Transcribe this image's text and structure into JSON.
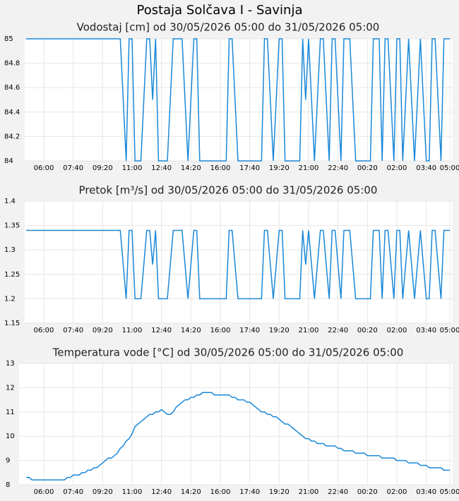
{
  "title": "Postaja Solčava I - Savinja",
  "chart_data": [
    {
      "type": "line",
      "title": "Vodostaj [cm] od 30/05/2026 05:00 do 31/05/2026 05:00",
      "color": "#1a88d8",
      "grid": true,
      "x": [
        "05:00",
        "05:10",
        "05:20",
        "05:30",
        "05:40",
        "05:50",
        "06:00",
        "06:10",
        "06:20",
        "06:30",
        "06:40",
        "06:50",
        "07:00",
        "07:10",
        "07:20",
        "07:30",
        "07:40",
        "07:50",
        "08:00",
        "08:10",
        "08:20",
        "08:30",
        "08:40",
        "08:50",
        "09:00",
        "09:10",
        "09:20",
        "09:30",
        "09:40",
        "09:50",
        "10:00",
        "10:10",
        "10:20",
        "10:30",
        "10:40",
        "10:50",
        "11:00",
        "11:10",
        "11:20",
        "11:30",
        "11:40",
        "11:50",
        "12:00",
        "12:10",
        "12:20",
        "12:30",
        "12:40",
        "12:50",
        "13:00",
        "13:10",
        "13:20",
        "13:30",
        "13:40",
        "13:50",
        "14:00",
        "14:10",
        "14:20",
        "14:30",
        "14:40",
        "14:50",
        "15:00",
        "15:10",
        "15:20",
        "15:30",
        "15:40",
        "15:50",
        "16:00",
        "16:10",
        "16:20",
        "16:30",
        "16:40",
        "16:50",
        "17:00",
        "17:10",
        "17:20",
        "17:30",
        "17:40",
        "17:50",
        "18:00",
        "18:10",
        "18:20",
        "18:30",
        "18:40",
        "18:50",
        "19:00",
        "19:10",
        "19:20",
        "19:30",
        "19:40",
        "19:50",
        "20:00",
        "20:10",
        "20:20",
        "20:30",
        "20:40",
        "20:50",
        "21:00",
        "21:10",
        "21:20",
        "21:30",
        "21:40",
        "21:50",
        "22:00",
        "22:10",
        "22:20",
        "22:30",
        "22:40",
        "22:50",
        "23:00",
        "23:10",
        "23:20",
        "23:30",
        "23:40",
        "23:50",
        "00:00",
        "00:10",
        "00:20",
        "00:30",
        "00:40",
        "00:50",
        "01:00",
        "01:10",
        "01:20",
        "01:30",
        "01:40",
        "01:50",
        "02:00",
        "02:10",
        "02:20",
        "02:30",
        "02:40",
        "02:50",
        "03:00",
        "03:10",
        "03:20",
        "03:30",
        "03:40",
        "03:50",
        "04:00",
        "04:10",
        "04:20",
        "04:30",
        "04:40",
        "04:50",
        "05:00"
      ],
      "values": [
        85,
        85,
        85,
        85,
        85,
        85,
        85,
        85,
        85,
        85,
        85,
        85,
        85,
        85,
        85,
        85,
        85,
        85,
        85,
        85,
        85,
        85,
        85,
        85,
        85,
        85,
        85,
        85,
        85,
        85,
        85,
        85,
        85,
        84.5,
        84,
        85,
        85,
        84,
        84,
        84,
        84.5,
        85,
        85,
        84.5,
        85,
        84,
        84,
        84,
        84,
        84.5,
        85,
        85,
        85,
        85,
        84.5,
        84,
        84.5,
        85,
        85,
        84,
        84,
        84,
        84,
        84,
        84,
        84,
        84,
        84,
        84,
        85,
        85,
        84.5,
        84,
        84,
        84,
        84,
        84,
        84,
        84,
        84,
        84,
        85,
        85,
        84.5,
        84,
        84.5,
        85,
        85,
        84,
        84,
        84,
        84,
        84,
        84,
        85,
        84.5,
        85,
        84.5,
        84,
        84.5,
        85,
        85,
        84.5,
        84,
        85,
        85,
        84.5,
        84,
        85,
        85,
        85,
        84.5,
        84,
        84,
        84,
        84,
        84,
        84,
        85,
        85,
        85,
        84,
        85,
        85,
        84.5,
        84,
        85,
        85,
        84,
        84.5,
        85,
        84.5,
        84,
        84.5,
        85,
        84.5,
        84,
        84,
        85,
        85,
        84.5,
        84,
        85,
        85,
        85
      ],
      "ylim": [
        84,
        85
      ],
      "yticks": [
        84,
        84.2,
        84.4,
        84.6,
        84.8,
        85
      ],
      "xticks": [
        "06:00",
        "07:40",
        "09:20",
        "11:00",
        "12:40",
        "14:20",
        "16:00",
        "17:40",
        "19:20",
        "21:00",
        "22:40",
        "00:20",
        "02:00",
        "03:40",
        "05:00"
      ]
    },
    {
      "type": "line",
      "title": "Pretok [m³/s] od 30/05/2026 05:00 do 31/05/2026 05:00",
      "color": "#1a88d8",
      "grid": true,
      "x": [
        "05:00",
        "05:10",
        "05:20",
        "05:30",
        "05:40",
        "05:50",
        "06:00",
        "06:10",
        "06:20",
        "06:30",
        "06:40",
        "06:50",
        "07:00",
        "07:10",
        "07:20",
        "07:30",
        "07:40",
        "07:50",
        "08:00",
        "08:10",
        "08:20",
        "08:30",
        "08:40",
        "08:50",
        "09:00",
        "09:10",
        "09:20",
        "09:30",
        "09:40",
        "09:50",
        "10:00",
        "10:10",
        "10:20",
        "10:30",
        "10:40",
        "10:50",
        "11:00",
        "11:10",
        "11:20",
        "11:30",
        "11:40",
        "11:50",
        "12:00",
        "12:10",
        "12:20",
        "12:30",
        "12:40",
        "12:50",
        "13:00",
        "13:10",
        "13:20",
        "13:30",
        "13:40",
        "13:50",
        "14:00",
        "14:10",
        "14:20",
        "14:30",
        "14:40",
        "14:50",
        "15:00",
        "15:10",
        "15:20",
        "15:30",
        "15:40",
        "15:50",
        "16:00",
        "16:10",
        "16:20",
        "16:30",
        "16:40",
        "16:50",
        "17:00",
        "17:10",
        "17:20",
        "17:30",
        "17:40",
        "17:50",
        "18:00",
        "18:10",
        "18:20",
        "18:30",
        "18:40",
        "18:50",
        "19:00",
        "19:10",
        "19:20",
        "19:30",
        "19:40",
        "19:50",
        "20:00",
        "20:10",
        "20:20",
        "20:30",
        "20:40",
        "20:50",
        "21:00",
        "21:10",
        "21:20",
        "21:30",
        "21:40",
        "21:50",
        "22:00",
        "22:10",
        "22:20",
        "22:30",
        "22:40",
        "22:50",
        "23:00",
        "23:10",
        "23:20",
        "23:30",
        "23:40",
        "23:50",
        "00:00",
        "00:10",
        "00:20",
        "00:30",
        "00:40",
        "00:50",
        "01:00",
        "01:10",
        "01:20",
        "01:30",
        "01:40",
        "01:50",
        "02:00",
        "02:10",
        "02:20",
        "02:30",
        "02:40",
        "02:50",
        "03:00",
        "03:10",
        "03:20",
        "03:30",
        "03:40",
        "03:50",
        "04:00",
        "04:10",
        "04:20",
        "04:30",
        "04:40",
        "04:50",
        "05:00"
      ],
      "values": [
        1.34,
        1.34,
        1.34,
        1.34,
        1.34,
        1.34,
        1.34,
        1.34,
        1.34,
        1.34,
        1.34,
        1.34,
        1.34,
        1.34,
        1.34,
        1.34,
        1.34,
        1.34,
        1.34,
        1.34,
        1.34,
        1.34,
        1.34,
        1.34,
        1.34,
        1.34,
        1.34,
        1.34,
        1.34,
        1.34,
        1.34,
        1.34,
        1.34,
        1.27,
        1.2,
        1.34,
        1.34,
        1.2,
        1.2,
        1.2,
        1.27,
        1.34,
        1.34,
        1.27,
        1.34,
        1.2,
        1.2,
        1.2,
        1.2,
        1.27,
        1.34,
        1.34,
        1.34,
        1.34,
        1.27,
        1.2,
        1.27,
        1.34,
        1.34,
        1.2,
        1.2,
        1.2,
        1.2,
        1.2,
        1.2,
        1.2,
        1.2,
        1.2,
        1.2,
        1.34,
        1.34,
        1.27,
        1.2,
        1.2,
        1.2,
        1.2,
        1.2,
        1.2,
        1.2,
        1.2,
        1.2,
        1.34,
        1.34,
        1.27,
        1.2,
        1.27,
        1.34,
        1.34,
        1.2,
        1.2,
        1.2,
        1.2,
        1.2,
        1.2,
        1.34,
        1.27,
        1.34,
        1.27,
        1.2,
        1.27,
        1.34,
        1.34,
        1.27,
        1.2,
        1.34,
        1.34,
        1.27,
        1.2,
        1.34,
        1.34,
        1.34,
        1.27,
        1.2,
        1.2,
        1.2,
        1.2,
        1.2,
        1.2,
        1.34,
        1.34,
        1.34,
        1.2,
        1.34,
        1.34,
        1.27,
        1.2,
        1.34,
        1.34,
        1.2,
        1.27,
        1.34,
        1.27,
        1.2,
        1.27,
        1.34,
        1.27,
        1.2,
        1.2,
        1.34,
        1.34,
        1.27,
        1.2,
        1.34,
        1.34,
        1.34
      ],
      "ylim": [
        1.15,
        1.4
      ],
      "yticks": [
        1.15,
        1.2,
        1.25,
        1.3,
        1.35,
        1.4
      ],
      "xticks": [
        "06:00",
        "07:40",
        "09:20",
        "11:00",
        "12:40",
        "14:20",
        "16:00",
        "17:40",
        "19:20",
        "21:00",
        "22:40",
        "00:20",
        "02:00",
        "03:40",
        "05:00"
      ]
    },
    {
      "type": "line",
      "title": "Temperatura vode [°C] od 30/05/2026 05:00 do 31/05/2026 05:00",
      "color": "#1a88d8",
      "grid": true,
      "x": [
        "05:00",
        "05:10",
        "05:20",
        "05:30",
        "05:40",
        "05:50",
        "06:00",
        "06:10",
        "06:20",
        "06:30",
        "06:40",
        "06:50",
        "07:00",
        "07:10",
        "07:20",
        "07:30",
        "07:40",
        "07:50",
        "08:00",
        "08:10",
        "08:20",
        "08:30",
        "08:40",
        "08:50",
        "09:00",
        "09:10",
        "09:20",
        "09:30",
        "09:40",
        "09:50",
        "10:00",
        "10:10",
        "10:20",
        "10:30",
        "10:40",
        "10:50",
        "11:00",
        "11:10",
        "11:20",
        "11:30",
        "11:40",
        "11:50",
        "12:00",
        "12:10",
        "12:20",
        "12:30",
        "12:40",
        "12:50",
        "13:00",
        "13:10",
        "13:20",
        "13:30",
        "13:40",
        "13:50",
        "14:00",
        "14:10",
        "14:20",
        "14:30",
        "14:40",
        "14:50",
        "15:00",
        "15:10",
        "15:20",
        "15:30",
        "15:40",
        "15:50",
        "16:00",
        "16:10",
        "16:20",
        "16:30",
        "16:40",
        "16:50",
        "17:00",
        "17:10",
        "17:20",
        "17:30",
        "17:40",
        "17:50",
        "18:00",
        "18:10",
        "18:20",
        "18:30",
        "18:40",
        "18:50",
        "19:00",
        "19:10",
        "19:20",
        "19:30",
        "19:40",
        "19:50",
        "20:00",
        "20:10",
        "20:20",
        "20:30",
        "20:40",
        "20:50",
        "21:00",
        "21:10",
        "21:20",
        "21:30",
        "21:40",
        "21:50",
        "22:00",
        "22:10",
        "22:20",
        "22:30",
        "22:40",
        "22:50",
        "23:00",
        "23:10",
        "23:20",
        "23:30",
        "23:40",
        "23:50",
        "00:00",
        "00:10",
        "00:20",
        "00:30",
        "00:40",
        "00:50",
        "01:00",
        "01:10",
        "01:20",
        "01:30",
        "01:40",
        "01:50",
        "02:00",
        "02:10",
        "02:20",
        "02:30",
        "02:40",
        "02:50",
        "03:00",
        "03:10",
        "03:20",
        "03:30",
        "03:40",
        "03:50",
        "04:00",
        "04:10",
        "04:20",
        "04:30",
        "04:40",
        "04:50",
        "05:00"
      ],
      "values": [
        8.3,
        8.3,
        8.2,
        8.2,
        8.2,
        8.2,
        8.2,
        8.2,
        8.2,
        8.2,
        8.2,
        8.2,
        8.2,
        8.2,
        8.3,
        8.3,
        8.4,
        8.4,
        8.4,
        8.5,
        8.5,
        8.6,
        8.6,
        8.7,
        8.7,
        8.8,
        8.9,
        9.0,
        9.1,
        9.1,
        9.2,
        9.3,
        9.5,
        9.6,
        9.8,
        9.9,
        10.1,
        10.4,
        10.5,
        10.6,
        10.7,
        10.8,
        10.9,
        10.9,
        11.0,
        11.0,
        11.1,
        11.0,
        10.9,
        10.9,
        11.0,
        11.2,
        11.3,
        11.4,
        11.5,
        11.5,
        11.6,
        11.6,
        11.7,
        11.7,
        11.8,
        11.8,
        11.8,
        11.8,
        11.7,
        11.7,
        11.7,
        11.7,
        11.7,
        11.7,
        11.6,
        11.6,
        11.5,
        11.5,
        11.5,
        11.4,
        11.4,
        11.3,
        11.2,
        11.1,
        11.0,
        11.0,
        10.9,
        10.9,
        10.8,
        10.8,
        10.7,
        10.6,
        10.5,
        10.5,
        10.4,
        10.3,
        10.2,
        10.1,
        10.0,
        9.9,
        9.9,
        9.8,
        9.8,
        9.7,
        9.7,
        9.7,
        9.6,
        9.6,
        9.6,
        9.6,
        9.5,
        9.5,
        9.4,
        9.4,
        9.4,
        9.4,
        9.3,
        9.3,
        9.3,
        9.3,
        9.2,
        9.2,
        9.2,
        9.2,
        9.2,
        9.1,
        9.1,
        9.1,
        9.1,
        9.1,
        9.0,
        9.0,
        9.0,
        9.0,
        8.9,
        8.9,
        8.9,
        8.9,
        8.8,
        8.8,
        8.8,
        8.7,
        8.7,
        8.7,
        8.7,
        8.7,
        8.6,
        8.6,
        8.6
      ],
      "ylim": [
        8,
        13
      ],
      "yticks": [
        8,
        9,
        10,
        11,
        12,
        13
      ],
      "xticks": [
        "06:00",
        "07:40",
        "09:20",
        "11:00",
        "12:40",
        "14:20",
        "16:00",
        "17:40",
        "19:20",
        "21:00",
        "22:40",
        "00:20",
        "02:00",
        "03:40",
        "05:00"
      ]
    }
  ]
}
